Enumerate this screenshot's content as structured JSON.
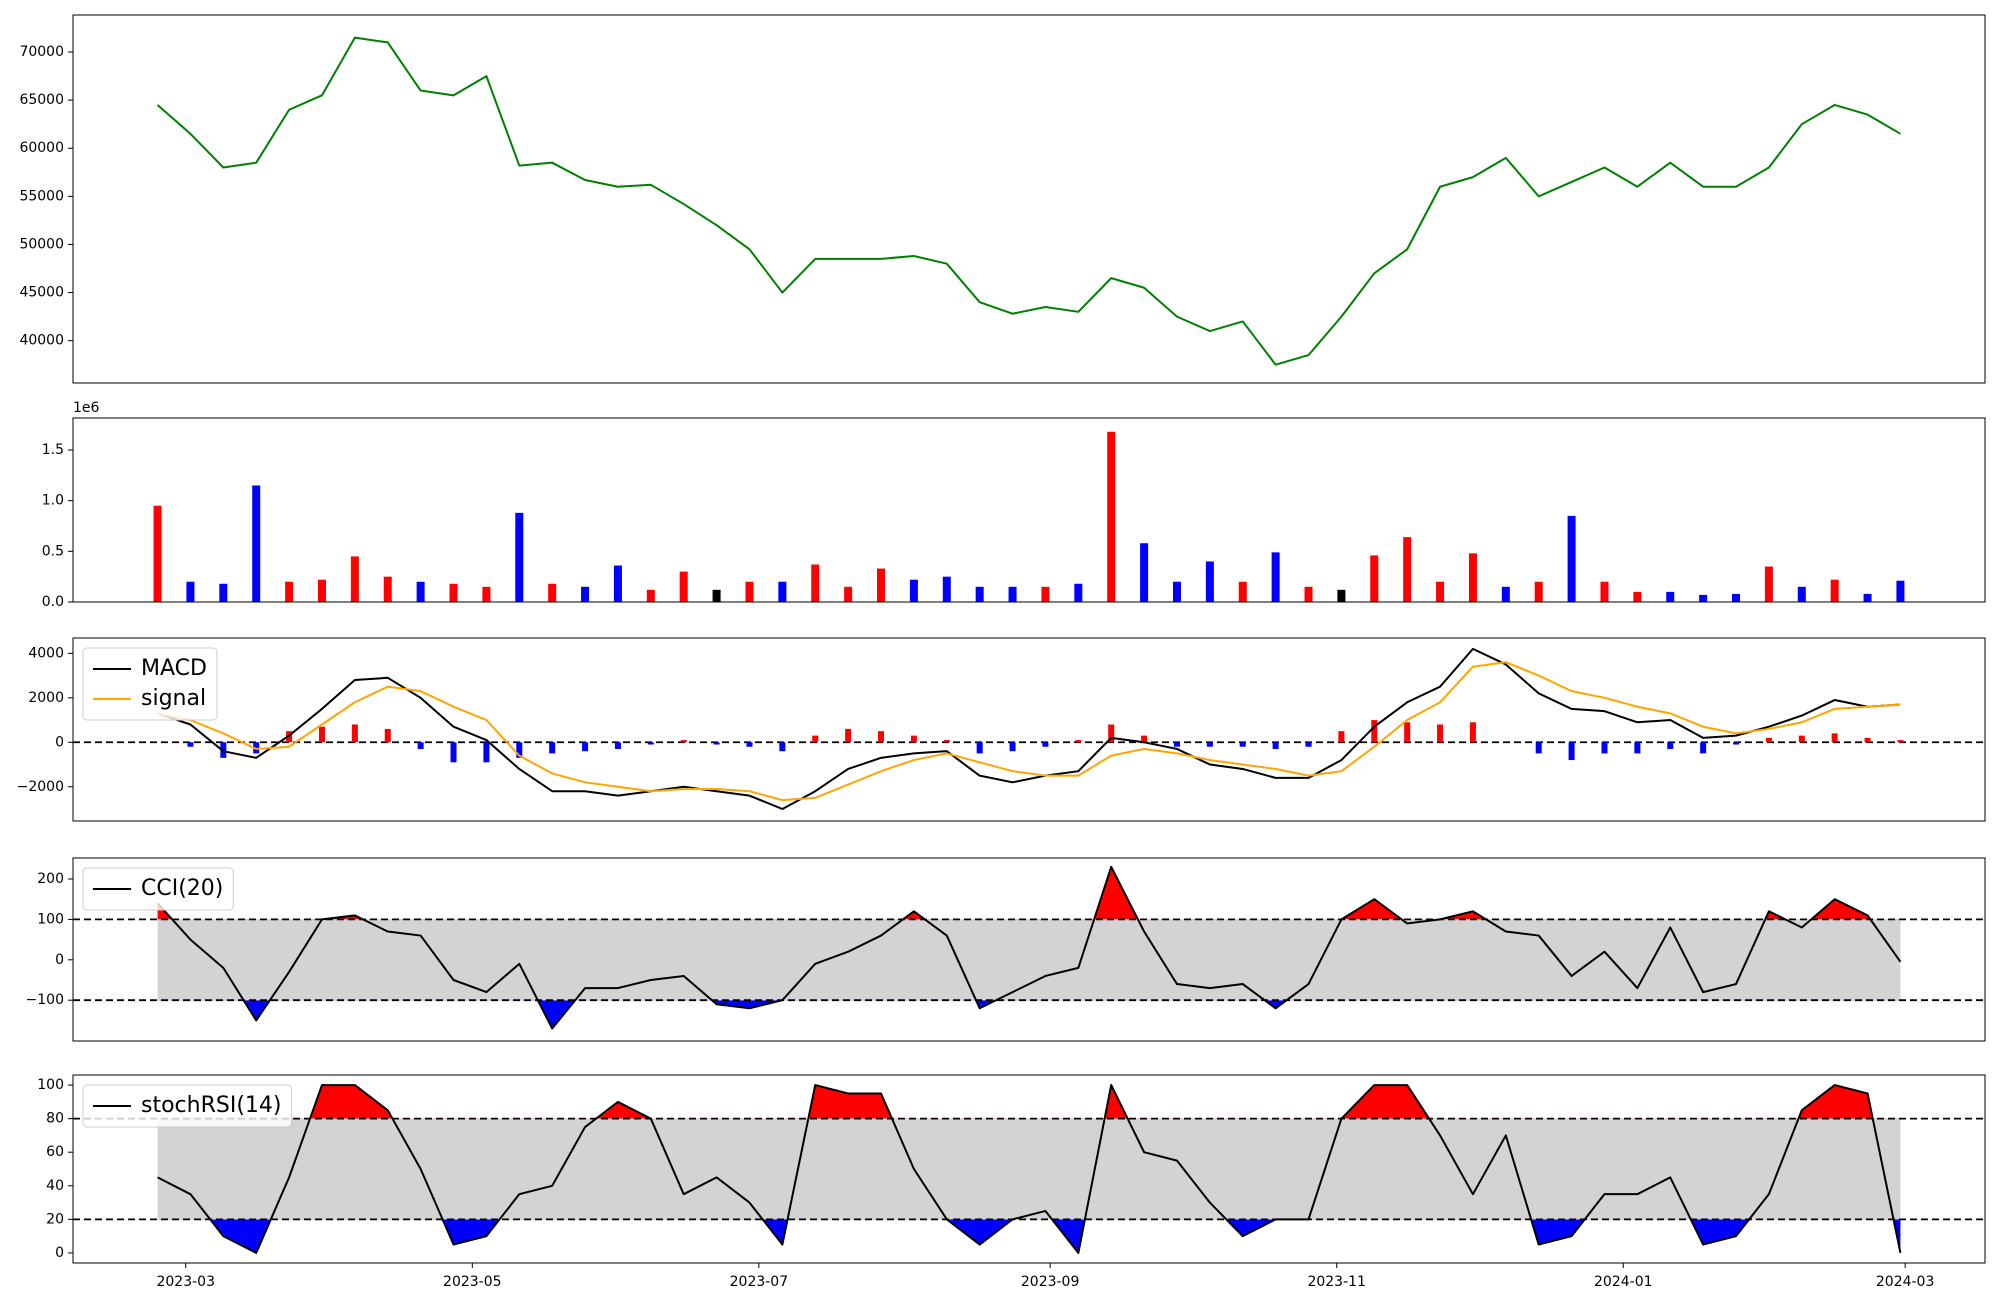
{
  "chart_data": [
    {
      "type": "line",
      "x": [
        "2023-02-23",
        "2023-03-02",
        "2023-03-09",
        "2023-03-16",
        "2023-03-23",
        "2023-03-30",
        "2023-04-06",
        "2023-04-13",
        "2023-04-20",
        "2023-04-27",
        "2023-05-04",
        "2023-05-11",
        "2023-05-18",
        "2023-05-25",
        "2023-06-01",
        "2023-06-08",
        "2023-06-15",
        "2023-06-22",
        "2023-06-29",
        "2023-07-06",
        "2023-07-13",
        "2023-07-20",
        "2023-07-27",
        "2023-08-03",
        "2023-08-10",
        "2023-08-17",
        "2023-08-24",
        "2023-08-31",
        "2023-09-07",
        "2023-09-14",
        "2023-09-21",
        "2023-09-28",
        "2023-10-05",
        "2023-10-12",
        "2023-10-19",
        "2023-10-26",
        "2023-11-02",
        "2023-11-09",
        "2023-11-16",
        "2023-11-23",
        "2023-11-30",
        "2023-12-07",
        "2023-12-14",
        "2023-12-21",
        "2023-12-28",
        "2024-01-04",
        "2024-01-11",
        "2024-01-18",
        "2024-01-25",
        "2024-02-01",
        "2024-02-08",
        "2024-02-15",
        "2024-02-22",
        "2024-02-29"
      ],
      "series": [
        {
          "color": "#008000",
          "values": [
            64500,
            61500,
            58000,
            58500,
            64000,
            65500,
            71500,
            71000,
            66000,
            65500,
            67500,
            58200,
            58500,
            56700,
            56000,
            56200,
            54200,
            52000,
            49500,
            45000,
            48500,
            48500,
            48500,
            48800,
            48000,
            44000,
            42800,
            43500,
            43000,
            46500,
            45500,
            42500,
            41000,
            42000,
            37500,
            38500,
            42500,
            47000,
            49500,
            56000,
            57000,
            59000,
            55000,
            56500,
            58000,
            56000,
            58500,
            56000,
            56000,
            58000,
            62500,
            64500,
            63500,
            61500
          ]
        }
      ],
      "xlim": [
        "2023-02-05",
        "2024-03-18"
      ],
      "ylim": [
        35600,
        73850
      ],
      "yticks": [
        40000,
        45000,
        50000,
        55000,
        60000,
        65000,
        70000
      ]
    },
    {
      "type": "bar",
      "x": [
        "2023-02-23",
        "2023-03-02",
        "2023-03-09",
        "2023-03-16",
        "2023-03-23",
        "2023-03-30",
        "2023-04-06",
        "2023-04-13",
        "2023-04-20",
        "2023-04-27",
        "2023-05-04",
        "2023-05-11",
        "2023-05-18",
        "2023-05-25",
        "2023-06-01",
        "2023-06-08",
        "2023-06-15",
        "2023-06-22",
        "2023-06-29",
        "2023-07-06",
        "2023-07-13",
        "2023-07-20",
        "2023-07-27",
        "2023-08-03",
        "2023-08-10",
        "2023-08-17",
        "2023-08-24",
        "2023-08-31",
        "2023-09-07",
        "2023-09-14",
        "2023-09-21",
        "2023-09-28",
        "2023-10-05",
        "2023-10-12",
        "2023-10-19",
        "2023-10-26",
        "2023-11-02",
        "2023-11-09",
        "2023-11-16",
        "2023-11-23",
        "2023-11-30",
        "2023-12-07",
        "2023-12-14",
        "2023-12-21",
        "2023-12-28",
        "2024-01-04",
        "2024-01-11",
        "2024-01-18",
        "2024-01-25",
        "2024-02-01",
        "2024-02-08",
        "2024-02-15",
        "2024-02-22",
        "2024-02-29"
      ],
      "values": [
        950000,
        200000,
        180000,
        1150000,
        200000,
        220000,
        450000,
        250000,
        200000,
        180000,
        150000,
        880000,
        180000,
        150000,
        360000,
        120000,
        300000,
        120000,
        200000,
        200000,
        370000,
        150000,
        330000,
        220000,
        250000,
        150000,
        150000,
        150000,
        180000,
        1680000,
        580000,
        200000,
        400000,
        200000,
        490000,
        150000,
        120000,
        460000,
        640000,
        200000,
        480000,
        150000,
        200000,
        850000,
        200000,
        100000,
        100000,
        70000,
        80000,
        350000,
        150000,
        220000,
        80000,
        210000
      ],
      "colors": [
        "red",
        "blue",
        "blue",
        "blue",
        "red",
        "red",
        "red",
        "red",
        "blue",
        "red",
        "red",
        "blue",
        "red",
        "blue",
        "blue",
        "red",
        "red",
        "black",
        "red",
        "blue",
        "red",
        "red",
        "red",
        "blue",
        "blue",
        "blue",
        "blue",
        "red",
        "blue",
        "red",
        "blue",
        "blue",
        "blue",
        "red",
        "blue",
        "red",
        "black",
        "red",
        "red",
        "red",
        "red",
        "blue",
        "red",
        "blue",
        "red",
        "red",
        "blue",
        "blue",
        "blue",
        "red",
        "blue",
        "red",
        "blue",
        "blue"
      ],
      "y_offset_label": "1e6",
      "xlim": [
        "2023-02-05",
        "2024-03-18"
      ],
      "ylim": [
        0,
        1816000
      ],
      "yticks": [
        {
          "value": 0,
          "label": "0.0"
        },
        {
          "value": 500000,
          "label": "0.5"
        },
        {
          "value": 1000000,
          "label": "1.0"
        },
        {
          "value": 1500000,
          "label": "1.5"
        }
      ]
    },
    {
      "type": "line",
      "x": [
        "2023-02-23",
        "2023-03-02",
        "2023-03-09",
        "2023-03-16",
        "2023-03-23",
        "2023-03-30",
        "2023-04-06",
        "2023-04-13",
        "2023-04-20",
        "2023-04-27",
        "2023-05-04",
        "2023-05-11",
        "2023-05-18",
        "2023-05-25",
        "2023-06-01",
        "2023-06-08",
        "2023-06-15",
        "2023-06-22",
        "2023-06-29",
        "2023-07-06",
        "2023-07-13",
        "2023-07-20",
        "2023-07-27",
        "2023-08-03",
        "2023-08-10",
        "2023-08-17",
        "2023-08-24",
        "2023-08-31",
        "2023-09-07",
        "2023-09-14",
        "2023-09-21",
        "2023-09-28",
        "2023-10-05",
        "2023-10-12",
        "2023-10-19",
        "2023-10-26",
        "2023-11-02",
        "2023-11-09",
        "2023-11-16",
        "2023-11-23",
        "2023-11-30",
        "2023-12-07",
        "2023-12-14",
        "2023-12-21",
        "2023-12-28",
        "2024-01-04",
        "2024-01-11",
        "2024-01-18",
        "2024-01-25",
        "2024-02-01",
        "2024-02-08",
        "2024-02-15",
        "2024-02-22",
        "2024-02-29"
      ],
      "series": [
        {
          "name": "MACD",
          "color": "black",
          "values": [
            1300,
            800,
            -400,
            -700,
            300,
            1500,
            2800,
            2900,
            2000,
            700,
            100,
            -1200,
            -2200,
            -2200,
            -2400,
            -2200,
            -2000,
            -2200,
            -2400,
            -3000,
            -2200,
            -1200,
            -700,
            -500,
            -400,
            -1500,
            -1800,
            -1500,
            -1300,
            200,
            0,
            -300,
            -1000,
            -1200,
            -1600,
            -1600,
            -800,
            700,
            1800,
            2500,
            4200,
            3500,
            2200,
            1500,
            1400,
            900,
            1000,
            200,
            300,
            700,
            1200,
            1900,
            1600,
            1700
          ]
        },
        {
          "name": "signal",
          "color": "orange",
          "values": [
            1300,
            1000,
            400,
            -300,
            -200,
            800,
            1800,
            2500,
            2300,
            1600,
            1000,
            -600,
            -1400,
            -1800,
            -2000,
            -2200,
            -2100,
            -2100,
            -2200,
            -2600,
            -2500,
            -1900,
            -1300,
            -800,
            -500,
            -900,
            -1300,
            -1500,
            -1500,
            -600,
            -300,
            -500,
            -800,
            -1000,
            -1200,
            -1500,
            -1300,
            -200,
            1000,
            1800,
            3400,
            3600,
            3000,
            2300,
            2000,
            1600,
            1300,
            700,
            400,
            600,
            900,
            1500,
            1600,
            1700
          ]
        }
      ],
      "histogram": {
        "values": [
          0,
          -200,
          -700,
          -500,
          500,
          700,
          800,
          600,
          -300,
          -900,
          -900,
          -700,
          -500,
          -400,
          -300,
          -100,
          100,
          -100,
          -200,
          -400,
          300,
          600,
          500,
          300,
          100,
          -500,
          -400,
          -200,
          100,
          800,
          300,
          -200,
          -200,
          -200,
          -300,
          -200,
          500,
          1000,
          900,
          800,
          900,
          0,
          -500,
          -800,
          -500,
          -500,
          -300,
          -500,
          -100,
          200,
          300,
          400,
          200,
          100
        ],
        "positive_color": "red",
        "negative_color": "blue"
      },
      "hlines": [
        0
      ],
      "legend": "upper left",
      "xlim": [
        "2023-02-05",
        "2024-03-18"
      ],
      "ylim": [
        -3540,
        4690
      ],
      "yticks": [
        {
          "value": -2000,
          "label": "−2000"
        },
        0,
        2000,
        4000
      ]
    },
    {
      "type": "line",
      "x": [
        "2023-02-23",
        "2023-03-02",
        "2023-03-09",
        "2023-03-16",
        "2023-03-23",
        "2023-03-30",
        "2023-04-06",
        "2023-04-13",
        "2023-04-20",
        "2023-04-27",
        "2023-05-04",
        "2023-05-11",
        "2023-05-18",
        "2023-05-25",
        "2023-06-01",
        "2023-06-08",
        "2023-06-15",
        "2023-06-22",
        "2023-06-29",
        "2023-07-06",
        "2023-07-13",
        "2023-07-20",
        "2023-07-27",
        "2023-08-03",
        "2023-08-10",
        "2023-08-17",
        "2023-08-24",
        "2023-08-31",
        "2023-09-07",
        "2023-09-14",
        "2023-09-21",
        "2023-09-28",
        "2023-10-05",
        "2023-10-12",
        "2023-10-19",
        "2023-10-26",
        "2023-11-02",
        "2023-11-09",
        "2023-11-16",
        "2023-11-23",
        "2023-11-30",
        "2023-12-07",
        "2023-12-14",
        "2023-12-21",
        "2023-12-28",
        "2024-01-04",
        "2024-01-11",
        "2024-01-18",
        "2024-01-25",
        "2024-02-01",
        "2024-02-08",
        "2024-02-15",
        "2024-02-22",
        "2024-02-29"
      ],
      "series": [
        {
          "name": "CCI(20)",
          "color": "black",
          "values": [
            140,
            50,
            -20,
            -150,
            -30,
            100,
            110,
            70,
            60,
            -50,
            -80,
            -10,
            -170,
            -70,
            -70,
            -50,
            -40,
            -110,
            -120,
            -100,
            -10,
            20,
            60,
            120,
            60,
            -120,
            -80,
            -40,
            -20,
            230,
            70,
            -60,
            -70,
            -60,
            -120,
            -60,
            100,
            150,
            90,
            100,
            120,
            70,
            60,
            -40,
            20,
            -70,
            80,
            -80,
            -60,
            120,
            80,
            150,
            110,
            -5
          ]
        }
      ],
      "bands": {
        "upper": 100,
        "lower": -100,
        "fill_color": "#d3d3d3",
        "above_color": "red",
        "below_color": "blue"
      },
      "legend": "upper left",
      "xlim": [
        "2023-02-05",
        "2024-03-18"
      ],
      "ylim": [
        -201,
        252
      ],
      "yticks": [
        {
          "value": -100,
          "label": "−100"
        },
        0,
        100,
        200
      ]
    },
    {
      "type": "line",
      "x": [
        "2023-02-23",
        "2023-03-02",
        "2023-03-09",
        "2023-03-16",
        "2023-03-23",
        "2023-03-30",
        "2023-04-06",
        "2023-04-13",
        "2023-04-20",
        "2023-04-27",
        "2023-05-04",
        "2023-05-11",
        "2023-05-18",
        "2023-05-25",
        "2023-06-01",
        "2023-06-08",
        "2023-06-15",
        "2023-06-22",
        "2023-06-29",
        "2023-07-06",
        "2023-07-13",
        "2023-07-20",
        "2023-07-27",
        "2023-08-03",
        "2023-08-10",
        "2023-08-17",
        "2023-08-24",
        "2023-08-31",
        "2023-09-07",
        "2023-09-14",
        "2023-09-21",
        "2023-09-28",
        "2023-10-05",
        "2023-10-12",
        "2023-10-19",
        "2023-10-26",
        "2023-11-02",
        "2023-11-09",
        "2023-11-16",
        "2023-11-23",
        "2023-11-30",
        "2023-12-07",
        "2023-12-14",
        "2023-12-21",
        "2023-12-28",
        "2024-01-04",
        "2024-01-11",
        "2024-01-18",
        "2024-01-25",
        "2024-02-01",
        "2024-02-08",
        "2024-02-15",
        "2024-02-22",
        "2024-02-29"
      ],
      "series": [
        {
          "name": "stochRSI(14)",
          "color": "black",
          "values": [
            45,
            35,
            10,
            0,
            45,
            100,
            100,
            85,
            50,
            5,
            10,
            35,
            40,
            75,
            90,
            80,
            35,
            45,
            30,
            5,
            100,
            95,
            95,
            50,
            20,
            5,
            20,
            25,
            0,
            100,
            60,
            55,
            30,
            10,
            20,
            20,
            80,
            100,
            100,
            70,
            35,
            70,
            5,
            10,
            35,
            35,
            45,
            5,
            10,
            35,
            85,
            100,
            95,
            0
          ]
        }
      ],
      "bands": {
        "upper": 80,
        "lower": 20,
        "fill_color": "#d3d3d3",
        "above_color": "red",
        "below_color": "blue"
      },
      "legend": "upper left",
      "xlim": [
        "2023-02-05",
        "2024-03-18"
      ],
      "ylim": [
        -6,
        106
      ],
      "yticks": [
        0,
        20,
        40,
        60,
        80,
        100
      ],
      "xticks": [
        {
          "value": "2023-03-01",
          "label": "2023-03"
        },
        {
          "value": "2023-05-01",
          "label": "2023-05"
        },
        {
          "value": "2023-07-01",
          "label": "2023-07"
        },
        {
          "value": "2023-09-01",
          "label": "2023-09"
        },
        {
          "value": "2023-11-01",
          "label": "2023-11"
        },
        {
          "value": "2024-01-01",
          "label": "2024-01"
        },
        {
          "value": "2024-03-01",
          "label": "2024-03"
        }
      ]
    }
  ]
}
